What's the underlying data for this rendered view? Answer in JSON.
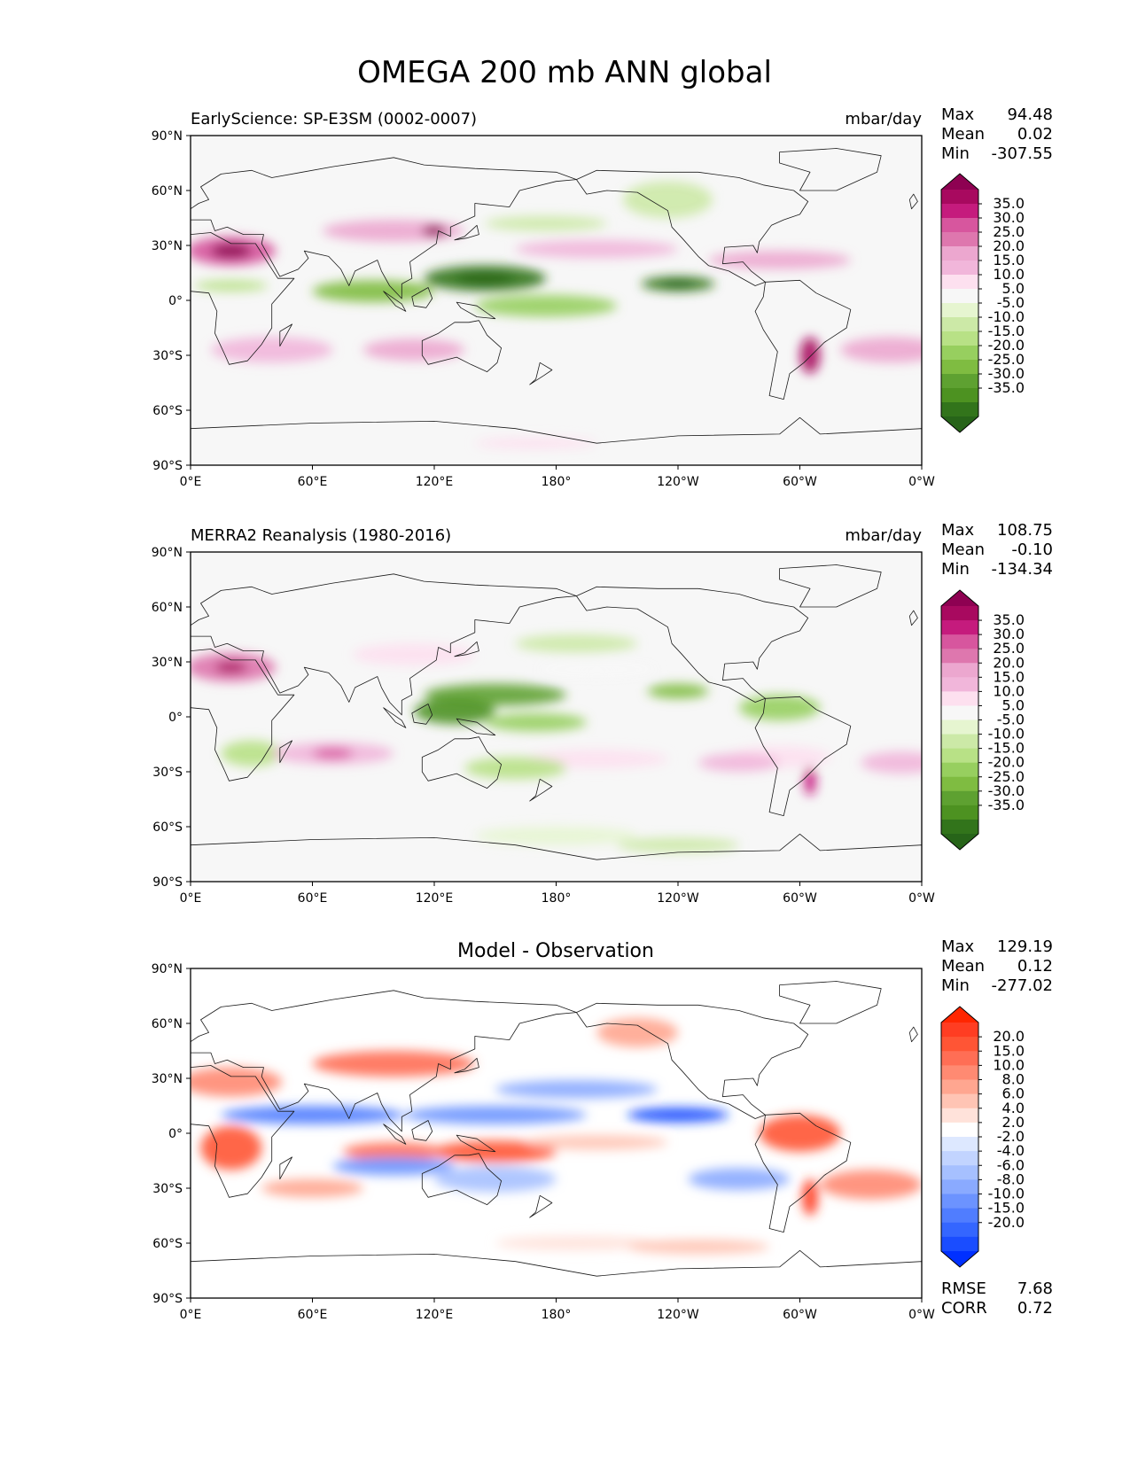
{
  "chart_data": {
    "type": "heatmap",
    "title": "OMEGA 200 mb ANN global",
    "x_ticks": [
      "0°E",
      "60°E",
      "120°E",
      "180°",
      "120°W",
      "60°W",
      "0°W"
    ],
    "y_ticks": [
      "90°N",
      "60°N",
      "30°N",
      "0°",
      "30°S",
      "60°S",
      "90°S"
    ],
    "panels": [
      {
        "id": "test",
        "title_left": "EarlyScience: SP-E3SM (0002-0007)",
        "title_center": "",
        "units": "mbar/day",
        "stats": [
          {
            "label": "Max",
            "value": "94.48"
          },
          {
            "label": "Mean",
            "value": "0.02"
          },
          {
            "label": "Min",
            "value": "-307.55"
          }
        ],
        "colorbar_levels": [
          "35.0",
          "30.0",
          "25.0",
          "20.0",
          "15.0",
          "10.0",
          "5.0",
          "-5.0",
          "-10.0",
          "-15.0",
          "-20.0",
          "-25.0",
          "-30.0",
          "-35.0"
        ],
        "colorbar_colors": [
          "#8e0152",
          "#a8095f",
          "#c51b7d",
          "#d7569e",
          "#de77ae",
          "#eca7cf",
          "#f1b6da",
          "#fde0ef",
          "#f7f7f7",
          "#e6f5d0",
          "#cce9a7",
          "#b8e186",
          "#97cf5f",
          "#7fbc41",
          "#5ea131",
          "#4d9221",
          "#32741b",
          "#276419"
        ],
        "extra_stats": []
      },
      {
        "id": "ref",
        "title_left": "MERRA2 Reanalysis (1980-2016)",
        "title_center": "",
        "units": "mbar/day",
        "stats": [
          {
            "label": "Max",
            "value": "108.75"
          },
          {
            "label": "Mean",
            "value": "-0.10"
          },
          {
            "label": "Min",
            "value": "-134.34"
          }
        ],
        "colorbar_levels": [
          "35.0",
          "30.0",
          "25.0",
          "20.0",
          "15.0",
          "10.0",
          "5.0",
          "-5.0",
          "-10.0",
          "-15.0",
          "-20.0",
          "-25.0",
          "-30.0",
          "-35.0"
        ],
        "colorbar_colors": [
          "#8e0152",
          "#a8095f",
          "#c51b7d",
          "#d7569e",
          "#de77ae",
          "#eca7cf",
          "#f1b6da",
          "#fde0ef",
          "#f7f7f7",
          "#e6f5d0",
          "#cce9a7",
          "#b8e186",
          "#97cf5f",
          "#7fbc41",
          "#5ea131",
          "#4d9221",
          "#32741b",
          "#276419"
        ],
        "extra_stats": []
      },
      {
        "id": "diff",
        "title_left": "",
        "title_center": "Model - Observation",
        "units": "",
        "stats": [
          {
            "label": "Max",
            "value": "129.19"
          },
          {
            "label": "Mean",
            "value": "0.12"
          },
          {
            "label": "Min",
            "value": "-277.02"
          }
        ],
        "colorbar_levels": [
          "20.0",
          "15.0",
          "10.0",
          "8.0",
          "6.0",
          "4.0",
          "2.0",
          "-2.0",
          "-4.0",
          "-6.0",
          "-8.0",
          "-10.0",
          "-15.0",
          "-20.0"
        ],
        "colorbar_colors": [
          "#ff2600",
          "#ff3d22",
          "#ff5535",
          "#ff6e55",
          "#ff8a72",
          "#ffa690",
          "#ffc4b4",
          "#ffe2da",
          "#ffffff",
          "#dde8ff",
          "#c2d4ff",
          "#a6c0ff",
          "#8aaaff",
          "#6c93ff",
          "#507dff",
          "#3466ff",
          "#1a4dff",
          "#0030ff"
        ],
        "extra_stats": [
          {
            "label": "RMSE",
            "value": "7.68"
          },
          {
            "label": "CORR",
            "value": "0.72"
          }
        ]
      }
    ],
    "colors": {
      "positive_max": "#8e0152",
      "negative_max": "#276419",
      "neutral": "#f7f7f7",
      "diff_positive": "#ff2600",
      "diff_negative": "#0030ff"
    }
  }
}
